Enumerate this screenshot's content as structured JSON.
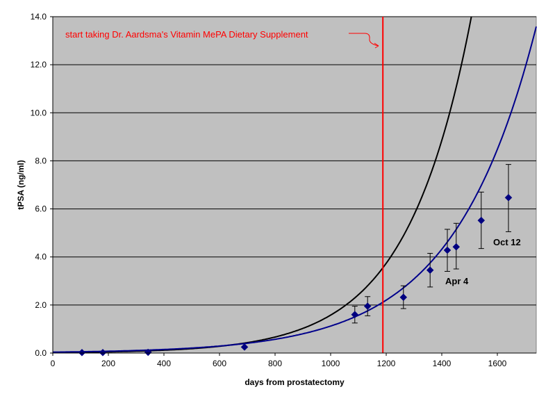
{
  "chart_data": {
    "type": "scatter",
    "xlabel": "days from prostatectomy",
    "ylabel": "tPSA (ng/ml)",
    "xlim": [
      0,
      1740
    ],
    "ylim": [
      0,
      14
    ],
    "x_ticks": [
      0,
      200,
      400,
      600,
      800,
      1000,
      1200,
      1400,
      1600
    ],
    "y_ticks": [
      "0.0",
      "2.0",
      "4.0",
      "6.0",
      "8.0",
      "10.0",
      "12.0",
      "14.0"
    ],
    "grid": "horizontal",
    "series": [
      {
        "marker": "diamond",
        "color": "#000080",
        "points": [
          {
            "x": 105,
            "y": 0.02
          },
          {
            "x": 180,
            "y": 0.02
          },
          {
            "x": 343,
            "y": 0.03
          },
          {
            "x": 690,
            "y": 0.25
          },
          {
            "x": 1087,
            "y": 1.6
          },
          {
            "x": 1133,
            "y": 1.95
          },
          {
            "x": 1262,
            "y": 2.32
          },
          {
            "x": 1358,
            "y": 3.45
          },
          {
            "x": 1420,
            "y": 4.28
          },
          {
            "x": 1452,
            "y": 4.42
          },
          {
            "x": 1542,
            "y": 5.52
          },
          {
            "x": 1640,
            "y": 6.47
          }
        ],
        "error_bars": [
          {
            "x": 1087,
            "low": 1.25,
            "high": 1.95
          },
          {
            "x": 1133,
            "low": 1.55,
            "high": 2.35
          },
          {
            "x": 1262,
            "low": 1.85,
            "high": 2.8
          },
          {
            "x": 1358,
            "low": 2.75,
            "high": 4.15
          },
          {
            "x": 1420,
            "low": 3.4,
            "high": 5.15
          },
          {
            "x": 1452,
            "low": 3.5,
            "high": 5.4
          },
          {
            "x": 1542,
            "low": 4.35,
            "high": 6.7
          },
          {
            "x": 1640,
            "low": 5.05,
            "high": 7.85
          }
        ]
      }
    ],
    "fit_curves": [
      {
        "color": "#000000",
        "form": "exponential",
        "a": 0.0212,
        "b": 0.00431
      },
      {
        "color": "#00008b",
        "form": "exponential",
        "a": 0.0386,
        "b": 0.00337
      }
    ],
    "vertical_line": {
      "x": 1188,
      "color": "#ff0000"
    },
    "annotations": [
      {
        "text": "start taking Dr. Aardsma's Vitamin MePA Dietary Supplement",
        "color": "#ff0000"
      },
      {
        "text": "Apr 4"
      },
      {
        "text": "Oct 12"
      }
    ]
  }
}
